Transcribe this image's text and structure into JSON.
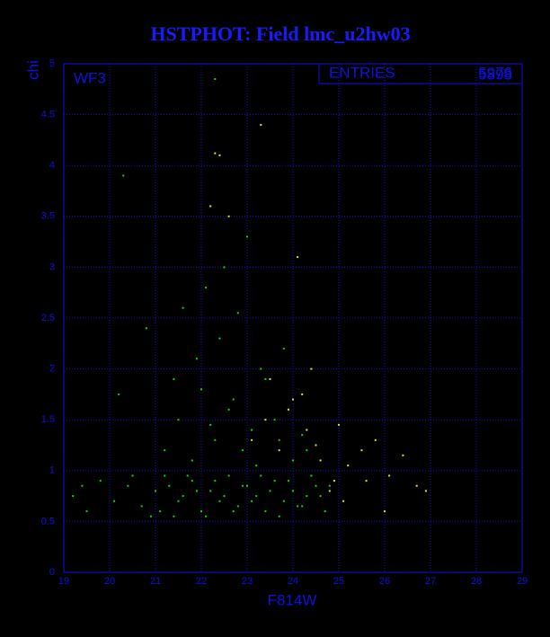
{
  "chart_data": {
    "type": "scatter",
    "title": "HSTPHOT: Field lmc_u2hw03",
    "xlabel": "F814W",
    "ylabel": "chi",
    "annotation": "WF3",
    "stats_label": "ENTRIES",
    "stats_values": [
      "5976",
      "5898"
    ],
    "xlim": [
      19,
      29
    ],
    "ylim": [
      0,
      5
    ],
    "xticks": [
      19,
      20,
      21,
      22,
      23,
      24,
      25,
      26,
      27,
      28,
      29
    ],
    "yticks": [
      0,
      0.5,
      1,
      1.5,
      2,
      2.5,
      3,
      3.5,
      4,
      4.5,
      5
    ],
    "grid": true,
    "series": [
      {
        "color": "#00e000",
        "x": [
          19.2,
          19.5,
          19.8,
          20.1,
          20.4,
          20.7,
          21.0,
          21.2,
          21.4,
          21.6,
          21.8,
          22.0,
          22.2,
          22.4,
          22.6,
          22.8,
          23.0,
          23.2,
          23.4,
          23.6,
          23.8,
          24.0,
          24.2,
          24.4,
          24.6,
          24.8,
          21.1,
          21.3,
          21.5,
          21.7,
          21.9,
          22.1,
          22.3,
          22.5,
          22.7,
          22.9,
          23.1,
          23.3,
          23.5,
          23.7,
          23.9,
          24.1,
          24.3,
          24.5,
          24.7,
          20.5,
          20.9,
          19.4,
          21.2,
          21.5,
          21.8,
          22.0,
          22.3,
          22.6,
          22.9,
          23.1,
          23.4,
          23.7,
          24.0,
          24.3,
          21.9,
          22.4,
          22.7,
          23.3,
          23.6,
          20.2,
          20.8,
          21.6,
          22.1,
          22.5,
          23.0,
          23.8,
          24.2,
          21.4,
          22.2,
          22.8,
          23.2,
          20.3,
          22.3
        ],
        "values": [
          0.75,
          0.6,
          0.9,
          0.7,
          0.85,
          0.65,
          0.8,
          0.95,
          0.55,
          0.75,
          0.9,
          0.6,
          0.8,
          0.7,
          0.95,
          0.65,
          0.85,
          0.75,
          0.6,
          0.9,
          0.7,
          0.8,
          0.65,
          0.95,
          0.75,
          0.85,
          0.6,
          0.85,
          0.7,
          0.95,
          0.8,
          0.55,
          0.9,
          0.75,
          0.6,
          0.85,
          0.7,
          0.95,
          0.8,
          0.55,
          0.9,
          0.65,
          0.75,
          0.85,
          0.6,
          0.95,
          0.55,
          0.85,
          1.2,
          1.5,
          1.1,
          1.8,
          1.3,
          1.6,
          1.2,
          1.4,
          1.9,
          1.3,
          1.1,
          1.2,
          2.1,
          2.3,
          1.7,
          2.0,
          1.5,
          1.75,
          2.4,
          2.6,
          2.8,
          3.0,
          3.3,
          2.2,
          1.35,
          1.9,
          1.45,
          2.55,
          1.05,
          3.9,
          4.85
        ]
      },
      {
        "color": "#e8e800",
        "x": [
          23.1,
          23.4,
          23.7,
          24.0,
          24.3,
          24.6,
          24.9,
          25.2,
          25.5,
          25.8,
          26.1,
          26.4,
          26.7,
          23.5,
          23.9,
          24.2,
          24.5,
          24.8,
          25.1,
          25.6,
          26.0,
          22.3,
          22.4,
          22.2,
          23.3,
          24.1,
          22.6,
          25.0,
          26.9,
          24.4
        ],
        "values": [
          1.3,
          1.5,
          1.2,
          1.7,
          1.4,
          1.1,
          0.9,
          1.05,
          1.2,
          1.3,
          0.95,
          1.15,
          0.85,
          1.9,
          1.6,
          1.75,
          1.25,
          0.8,
          0.7,
          0.9,
          0.6,
          4.12,
          4.1,
          3.6,
          4.4,
          3.1,
          3.5,
          1.45,
          0.8,
          2.0
        ]
      }
    ]
  }
}
